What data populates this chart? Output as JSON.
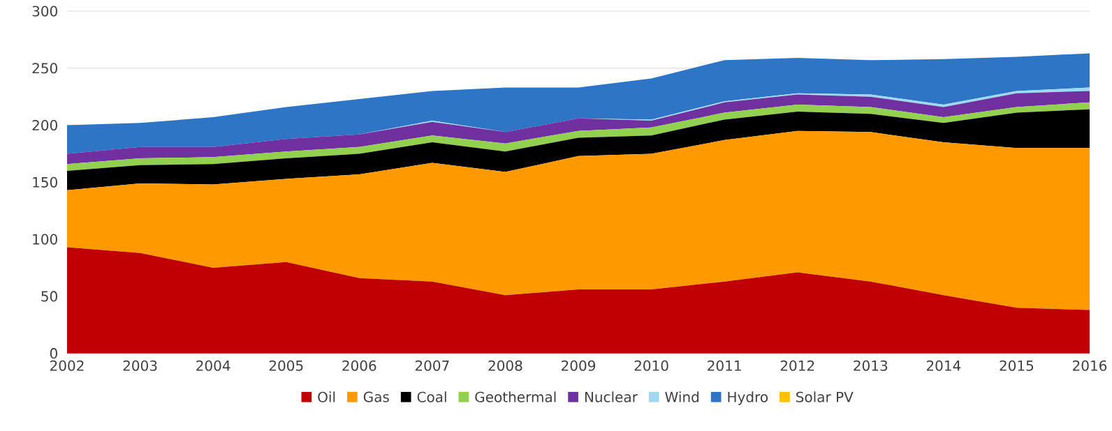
{
  "chart_data": {
    "type": "area",
    "stacked": true,
    "x": [
      2002,
      2003,
      2004,
      2005,
      2006,
      2007,
      2008,
      2009,
      2010,
      2011,
      2012,
      2013,
      2014,
      2015,
      2016
    ],
    "series": [
      {
        "name": "Oil",
        "color": "#c00000",
        "values": [
          93,
          88,
          75,
          80,
          66,
          63,
          51,
          56,
          56,
          63,
          71,
          63,
          51,
          40,
          38
        ]
      },
      {
        "name": "Gas",
        "color": "#ff9900",
        "values": [
          50,
          61,
          73,
          73,
          91,
          104,
          108,
          117,
          119,
          124,
          124,
          131,
          134,
          140,
          142
        ]
      },
      {
        "name": "Coal",
        "color": "#000000",
        "values": [
          17,
          16,
          18,
          18,
          18,
          18,
          18,
          16,
          16,
          18,
          17,
          16,
          17,
          31,
          34
        ]
      },
      {
        "name": "Geothermal",
        "color": "#92d050",
        "values": [
          6,
          6,
          6,
          6,
          6,
          6,
          7,
          6,
          7,
          6,
          6,
          6,
          5,
          5,
          6
        ]
      },
      {
        "name": "Nuclear",
        "color": "#7030a0",
        "values": [
          9,
          10,
          9,
          11,
          11,
          12,
          10,
          11,
          6,
          9,
          9,
          9,
          9,
          12,
          10
        ]
      },
      {
        "name": "Wind",
        "color": "#9dd9f0",
        "values": [
          0,
          0,
          0,
          0,
          0,
          1,
          0,
          0,
          1,
          1,
          1,
          2,
          2,
          2,
          3
        ]
      },
      {
        "name": "Hydro",
        "color": "#2e75c6",
        "values": [
          25,
          21,
          26,
          28,
          31,
          26,
          39,
          27,
          36,
          36,
          31,
          30,
          40,
          30,
          30
        ]
      },
      {
        "name": "Solar PV",
        "color": "#ffc000",
        "values": [
          null,
          null,
          null,
          null,
          null,
          null,
          null,
          null,
          null,
          null,
          null,
          null,
          null,
          null,
          null
        ]
      }
    ],
    "xlim": [
      2002,
      2016
    ],
    "xticks": [
      2002,
      2003,
      2004,
      2005,
      2006,
      2007,
      2008,
      2009,
      2010,
      2011,
      2012,
      2013,
      2014,
      2015,
      2016
    ],
    "ylim": [
      0,
      300
    ],
    "yticks": [
      0,
      50,
      100,
      150,
      200,
      250,
      300
    ],
    "grid": "y",
    "legend": "bottom"
  }
}
